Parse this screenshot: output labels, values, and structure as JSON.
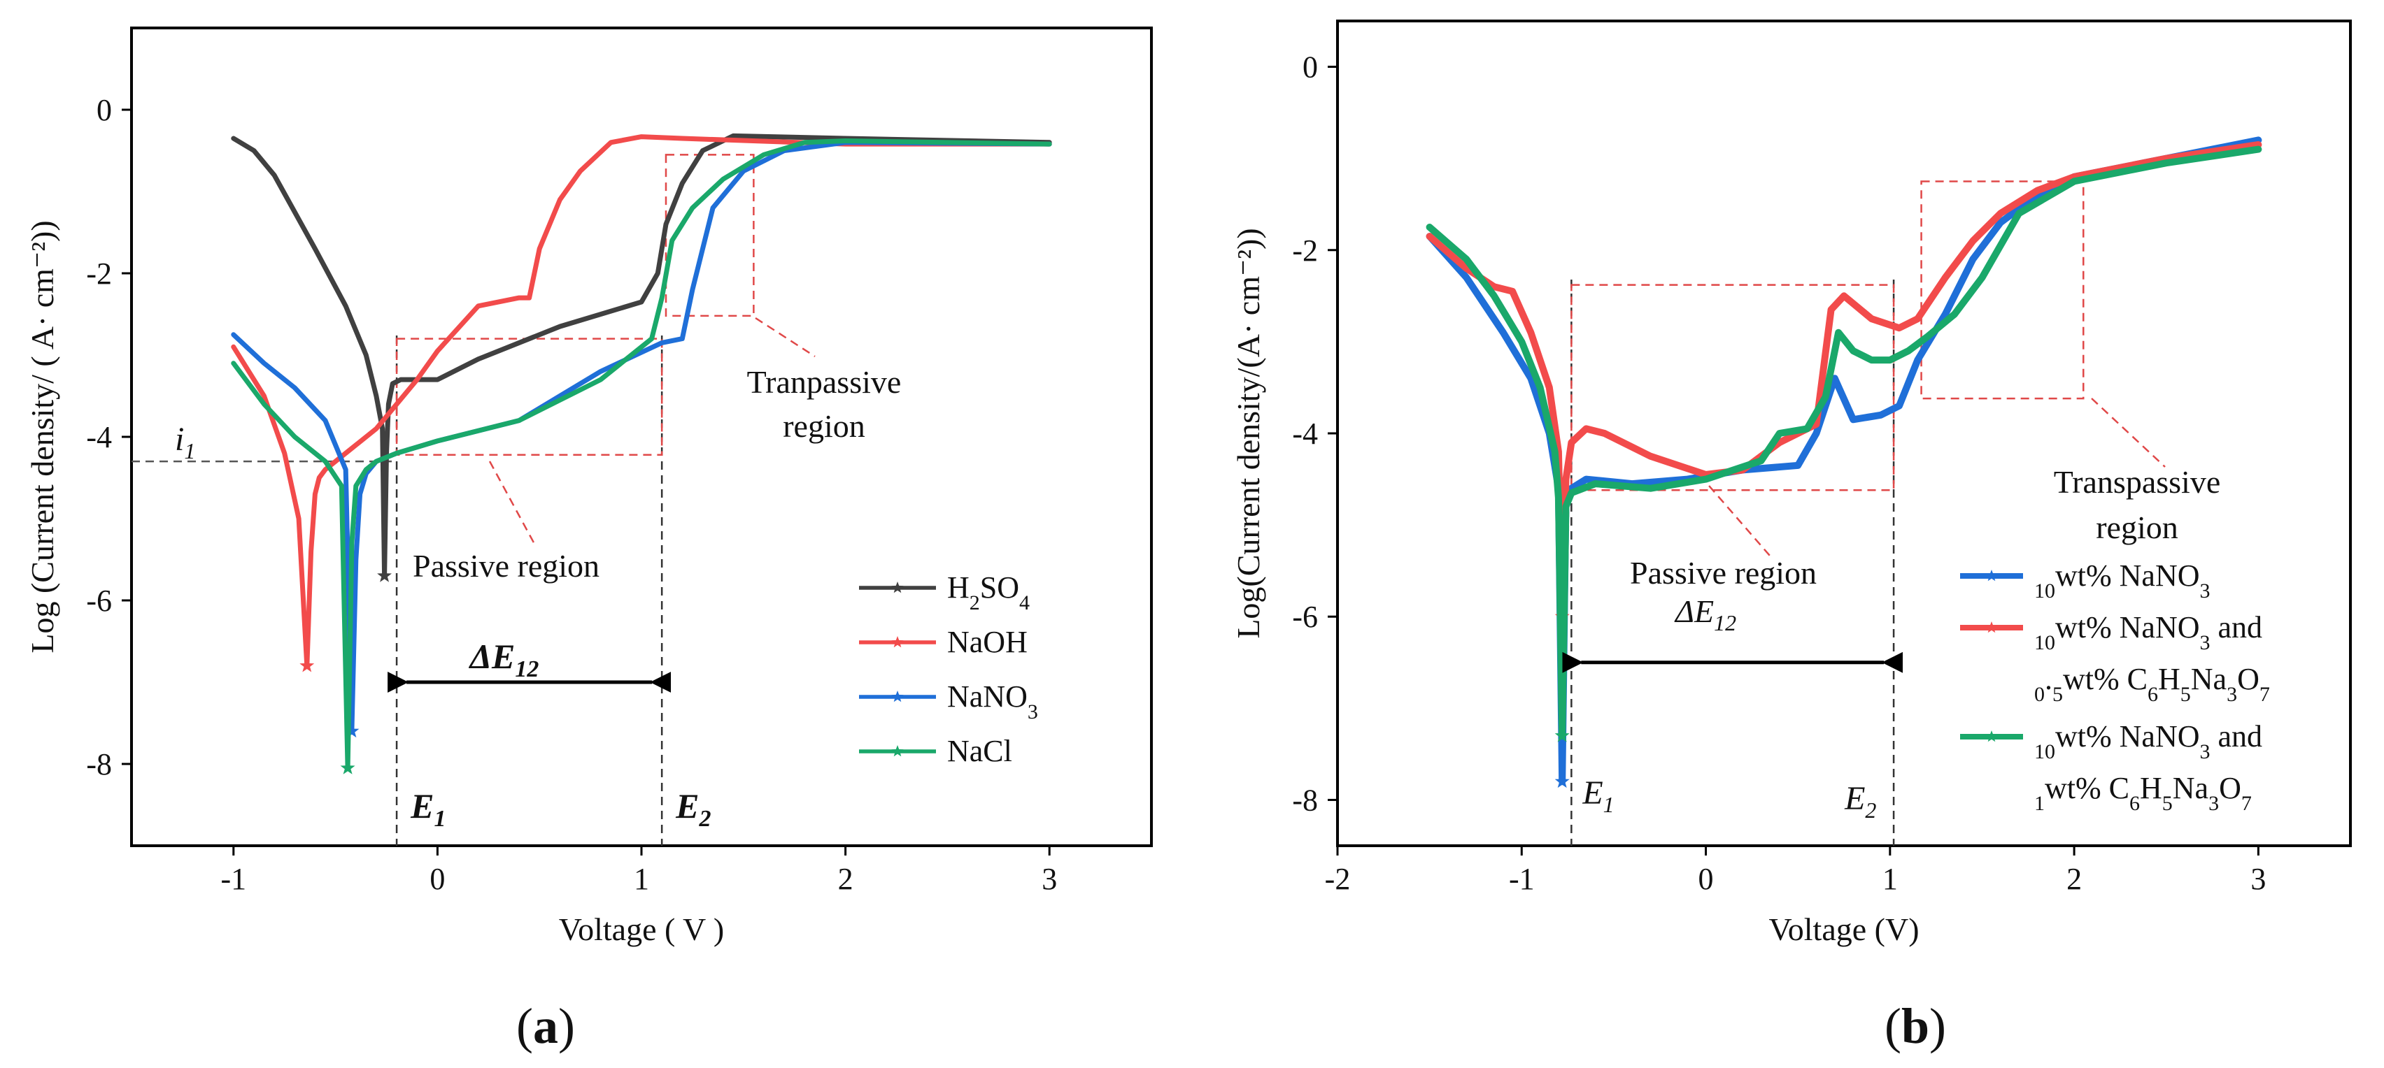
{
  "chart_data": [
    {
      "panel_label": "(a)",
      "type": "line",
      "xlabel": "Voltage ( V )",
      "ylabel": "Log (Current density/ ( A· cm⁻²))",
      "xlim": [
        -1.5,
        3.5
      ],
      "ylim": [
        -9,
        1
      ],
      "xticks": [
        -1,
        0,
        1,
        2,
        3
      ],
      "yticks": [
        0,
        -2,
        -4,
        -6,
        -8
      ],
      "grid": false,
      "legend": "bottom-right",
      "series": [
        {
          "name": "H2SO4",
          "color": "#404040",
          "marker": "star",
          "x": [
            -1.0,
            -0.9,
            -0.8,
            -0.6,
            -0.45,
            -0.35,
            -0.3,
            -0.27,
            -0.26,
            -0.25,
            -0.24,
            -0.22,
            -0.18,
            -0.1,
            0.0,
            0.2,
            0.6,
            1.0,
            1.08,
            1.12,
            1.2,
            1.3,
            1.45,
            2.0,
            3.0
          ],
          "y": [
            -0.35,
            -0.5,
            -0.8,
            -1.7,
            -2.4,
            -3.0,
            -3.5,
            -3.9,
            -5.7,
            -4.2,
            -3.6,
            -3.35,
            -3.3,
            -3.3,
            -3.3,
            -3.05,
            -2.65,
            -2.35,
            -2.0,
            -1.4,
            -0.9,
            -0.5,
            -0.32,
            -0.35,
            -0.4
          ]
        },
        {
          "name": "NaOH",
          "color": "#f24b4b",
          "marker": "star",
          "x": [
            -1.0,
            -0.85,
            -0.75,
            -0.68,
            -0.64,
            -0.62,
            -0.6,
            -0.58,
            -0.55,
            -0.45,
            -0.3,
            -0.1,
            0.0,
            0.2,
            0.4,
            0.45,
            0.5,
            0.6,
            0.7,
            0.85,
            1.0,
            1.2,
            2.0,
            3.0
          ],
          "y": [
            -2.9,
            -3.5,
            -4.2,
            -5.0,
            -6.8,
            -5.4,
            -4.7,
            -4.5,
            -4.4,
            -4.2,
            -3.9,
            -3.3,
            -2.95,
            -2.4,
            -2.3,
            -2.3,
            -1.7,
            -1.1,
            -0.75,
            -0.4,
            -0.33,
            -0.35,
            -0.42,
            -0.42
          ]
        },
        {
          "name": "NaNO3",
          "color": "#1f6fd8",
          "marker": "star",
          "x": [
            -1.0,
            -0.85,
            -0.7,
            -0.55,
            -0.45,
            -0.42,
            -0.4,
            -0.38,
            -0.35,
            -0.3,
            -0.2,
            0.0,
            0.4,
            0.8,
            1.1,
            1.2,
            1.25,
            1.35,
            1.5,
            1.7,
            2.0,
            3.0
          ],
          "y": [
            -2.75,
            -3.1,
            -3.4,
            -3.8,
            -4.4,
            -7.6,
            -5.5,
            -4.7,
            -4.45,
            -4.3,
            -4.2,
            -4.05,
            -3.8,
            -3.2,
            -2.85,
            -2.8,
            -2.2,
            -1.2,
            -0.75,
            -0.5,
            -0.4,
            -0.42
          ]
        },
        {
          "name": "NaCl",
          "color": "#1aa86a",
          "marker": "star",
          "x": [
            -1.0,
            -0.85,
            -0.7,
            -0.55,
            -0.47,
            -0.44,
            -0.42,
            -0.4,
            -0.35,
            -0.3,
            -0.2,
            0.0,
            0.4,
            0.8,
            1.05,
            1.1,
            1.15,
            1.25,
            1.4,
            1.6,
            1.8,
            2.0,
            3.0
          ],
          "y": [
            -3.1,
            -3.6,
            -4.0,
            -4.3,
            -4.6,
            -8.05,
            -5.3,
            -4.6,
            -4.4,
            -4.3,
            -4.2,
            -4.05,
            -3.8,
            -3.3,
            -2.8,
            -2.3,
            -1.6,
            -1.2,
            -0.85,
            -0.55,
            -0.4,
            -0.38,
            -0.42
          ]
        }
      ],
      "annotations": {
        "i1_label": "i",
        "i1_sub": "1",
        "i1_value": -4.3,
        "E1_label": "E",
        "E1_sub": "1",
        "E1_value": -0.2,
        "E2_label": "E",
        "E2_sub": "2",
        "E2_value": 1.1,
        "dE_label": "ΔE",
        "dE_sub": "12",
        "dE_y": -7.0,
        "passive_label": "Passive region",
        "passive_box": {
          "x": [
            -0.2,
            1.1
          ],
          "y": [
            -2.8,
            -4.22
          ]
        },
        "transpassive_label_1": "Tranpassive",
        "transpassive_label_2": "region",
        "transpassive_box": {
          "x": [
            1.12,
            1.55
          ],
          "y": [
            -0.55,
            -2.52
          ]
        }
      }
    },
    {
      "panel_label": "(b)",
      "type": "line",
      "xlabel": "Voltage (V)",
      "ylabel": "Log(Current density/(A· cm⁻²))",
      "xlim": [
        -2,
        3.5
      ],
      "ylim": [
        -8.5,
        0.5
      ],
      "xticks": [
        -2,
        -1,
        0,
        1,
        2,
        3
      ],
      "yticks": [
        0,
        -2,
        -4,
        -6,
        -8
      ],
      "grid": false,
      "legend": "bottom-right",
      "series": [
        {
          "name": "10wt% NaNO3",
          "color": "#1f6fd8",
          "marker": "star",
          "x": [
            -1.5,
            -1.3,
            -1.1,
            -0.95,
            -0.85,
            -0.8,
            -0.78,
            -0.76,
            -0.73,
            -0.65,
            -0.4,
            -0.1,
            0.2,
            0.5,
            0.6,
            0.7,
            0.8,
            0.95,
            1.05,
            1.15,
            1.3,
            1.45,
            1.6,
            1.8,
            2.0,
            2.5,
            3.0
          ],
          "y": [
            -1.85,
            -2.3,
            -2.9,
            -3.4,
            -4.0,
            -4.6,
            -7.8,
            -4.7,
            -4.6,
            -4.5,
            -4.55,
            -4.5,
            -4.4,
            -4.35,
            -4.0,
            -3.4,
            -3.85,
            -3.8,
            -3.7,
            -3.2,
            -2.7,
            -2.1,
            -1.7,
            -1.4,
            -1.2,
            -1.0,
            -0.8
          ]
        },
        {
          "name": "10wt% NaNO3 and 0.5wt% C6H5Na3O7",
          "color": "#f24b4b",
          "marker": "star",
          "x": [
            -1.5,
            -1.3,
            -1.15,
            -1.05,
            -0.95,
            -0.85,
            -0.8,
            -0.78,
            -0.76,
            -0.73,
            -0.65,
            -0.55,
            -0.3,
            0.0,
            0.2,
            0.4,
            0.6,
            0.68,
            0.75,
            0.9,
            1.05,
            1.15,
            1.3,
            1.45,
            1.6,
            1.8,
            2.0,
            2.5,
            3.0
          ],
          "y": [
            -1.85,
            -2.2,
            -2.4,
            -2.45,
            -2.9,
            -3.5,
            -4.2,
            -6.0,
            -4.5,
            -4.1,
            -3.95,
            -4.0,
            -4.25,
            -4.45,
            -4.4,
            -4.1,
            -3.9,
            -2.65,
            -2.5,
            -2.75,
            -2.85,
            -2.75,
            -2.3,
            -1.9,
            -1.6,
            -1.35,
            -1.2,
            -1.0,
            -0.85
          ]
        },
        {
          "name": "10wt% NaNO3 and 1wt% C6H5Na3O7",
          "color": "#1aa86a",
          "marker": "star",
          "x": [
            -1.5,
            -1.3,
            -1.15,
            -1.0,
            -0.9,
            -0.82,
            -0.8,
            -0.78,
            -0.76,
            -0.73,
            -0.6,
            -0.3,
            0.0,
            0.3,
            0.4,
            0.55,
            0.65,
            0.72,
            0.8,
            0.9,
            1.0,
            1.1,
            1.2,
            1.35,
            1.5,
            1.7,
            2.0,
            2.5,
            3.0
          ],
          "y": [
            -1.75,
            -2.1,
            -2.5,
            -3.0,
            -3.5,
            -4.2,
            -4.7,
            -7.3,
            -4.8,
            -4.65,
            -4.55,
            -4.6,
            -4.5,
            -4.3,
            -4.0,
            -3.95,
            -3.6,
            -2.9,
            -3.1,
            -3.2,
            -3.2,
            -3.1,
            -2.95,
            -2.7,
            -2.3,
            -1.6,
            -1.25,
            -1.05,
            -0.9
          ]
        }
      ],
      "annotations": {
        "E1_label": "E",
        "E1_sub": "1",
        "E1_value": -0.73,
        "E2_label": "E",
        "E2_sub": "2",
        "E2_value": 1.02,
        "dE_label": "ΔE",
        "dE_sub": "12",
        "dE_y": -6.5,
        "passive_label": "Passive region",
        "passive_box": {
          "x": [
            -0.73,
            1.02
          ],
          "y": [
            -2.38,
            -4.62
          ]
        },
        "transpassive_label_1": "Transpassive",
        "transpassive_label_2": "region",
        "transpassive_box": {
          "x": [
            1.17,
            2.05
          ],
          "y": [
            -1.25,
            -3.62
          ]
        }
      }
    }
  ]
}
